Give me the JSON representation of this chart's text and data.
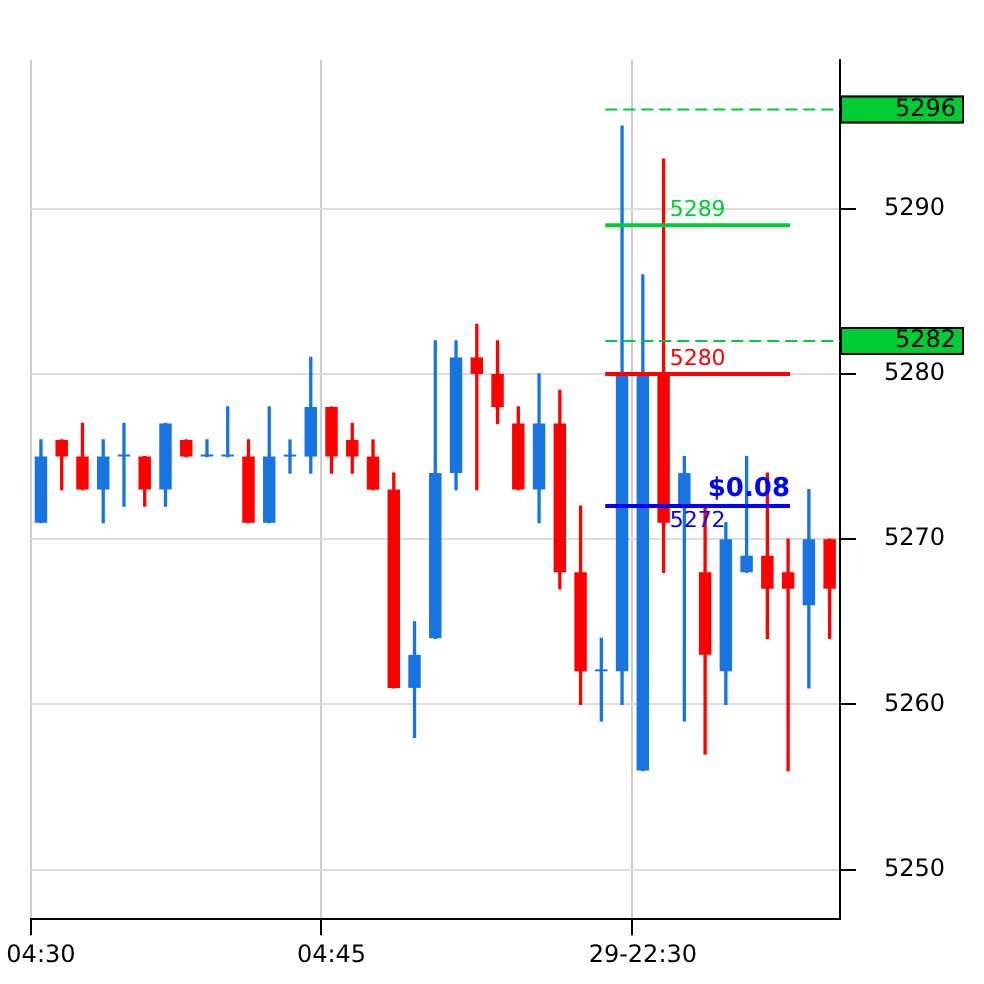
{
  "chart_data": {
    "type": "candlestick",
    "categories": [
      "04:30",
      null,
      null,
      null,
      null,
      null,
      null,
      null,
      null,
      null,
      null,
      null,
      null,
      null,
      "04:45",
      null,
      null,
      null,
      null,
      null,
      null,
      null,
      null,
      null,
      null,
      null,
      null,
      null,
      null,
      "29-22:30",
      null,
      null,
      null,
      null,
      null,
      null,
      null,
      null,
      null
    ],
    "ohlc": [
      [
        5271,
        5276,
        5271,
        5275
      ],
      [
        5276,
        5276,
        5273,
        5275
      ],
      [
        5275,
        5277,
        5273,
        5273
      ],
      [
        5273,
        5276,
        5271,
        5275
      ],
      [
        5275,
        5277,
        5272,
        5275
      ],
      [
        5275,
        5275,
        5272,
        5273
      ],
      [
        5273,
        5277,
        5272,
        5277
      ],
      [
        5276,
        5276,
        5275,
        5275
      ],
      [
        5275,
        5276,
        5275,
        5275
      ],
      [
        5275,
        5278,
        5275,
        5275
      ],
      [
        5275,
        5276,
        5271,
        5271
      ],
      [
        5271,
        5278,
        5271,
        5275
      ],
      [
        5275,
        5276,
        5274,
        5275
      ],
      [
        5275,
        5281,
        5274,
        5278
      ],
      [
        5278,
        5278,
        5274,
        5275
      ],
      [
        5276,
        5277,
        5274,
        5275
      ],
      [
        5275,
        5276,
        5273,
        5273
      ],
      [
        5273,
        5274,
        5261,
        5261
      ],
      [
        5261,
        5265,
        5258,
        5263
      ],
      [
        5264,
        5282,
        5264,
        5274
      ],
      [
        5274,
        5282,
        5273,
        5281
      ],
      [
        5281,
        5283,
        5273,
        5280
      ],
      [
        5280,
        5282,
        5277,
        5278
      ],
      [
        5277,
        5278,
        5273,
        5273
      ],
      [
        5273,
        5280,
        5271,
        5277
      ],
      [
        5277,
        5279,
        5267,
        5268
      ],
      [
        5268,
        5272,
        5260,
        5262
      ],
      [
        5262,
        5264,
        5259,
        5262
      ],
      [
        5262,
        5295,
        5260,
        5280
      ],
      [
        5256,
        5286,
        5256,
        5280
      ],
      [
        5280,
        5293,
        5268,
        5271
      ],
      [
        5272,
        5275,
        5259,
        5274
      ],
      [
        5268,
        5272,
        5257,
        5263
      ],
      [
        5262,
        5271,
        5260,
        5270
      ],
      [
        5268,
        5275,
        5268,
        5269
      ],
      [
        5269,
        5274,
        5264,
        5267
      ],
      [
        5268,
        5270,
        5256,
        5267
      ],
      [
        5266,
        5273,
        5261,
        5270
      ],
      [
        5270,
        5270,
        5264,
        5267
      ]
    ],
    "colors": [
      "#1874e0",
      "#ff0000",
      "#ff0000",
      "#1874e0",
      "#1874e0",
      "#ff0000",
      "#1874e0",
      "#ff0000",
      "#1874e0",
      "#1874e0",
      "#ff0000",
      "#1874e0",
      "#1874e0",
      "#1874e0",
      "#ff0000",
      "#ff0000",
      "#ff0000",
      "#ff0000",
      "#1874e0",
      "#1874e0",
      "#1874e0",
      "#ff0000",
      "#ff0000",
      "#ff0000",
      "#1874e0",
      "#ff0000",
      "#ff0000",
      "#1874e0",
      "#1874e0",
      "#1874e0",
      "#ff0000",
      "#1874e0",
      "#ff0000",
      "#1874e0",
      "#1874e0",
      "#ff0000",
      "#ff0000",
      "#1874e0",
      "#ff0000"
    ],
    "ylim": [
      5247,
      5299
    ],
    "yticks": [
      5250,
      5260,
      5270,
      5280,
      5290
    ],
    "grid": true,
    "ref_lines": [
      {
        "axis": "y",
        "value": 5296,
        "label": "5296",
        "color": "#00cc33",
        "line_style": "dashed"
      },
      {
        "axis": "y",
        "value": 5289,
        "label": "5289",
        "color": "#00cc33",
        "line_style": "solid"
      },
      {
        "axis": "y",
        "value": 5282,
        "label": "5282",
        "color": "#00cc33",
        "line_style": "dashed"
      },
      {
        "axis": "y",
        "value": 5280,
        "label": "5280",
        "color": "#ff0000",
        "line_style": "solid"
      },
      {
        "axis": "y",
        "value": 5272,
        "label": "5272",
        "color": "#0000ff",
        "line_style": "solid"
      }
    ],
    "annotations": [
      {
        "text": "$0.08",
        "y": 5272
      }
    ]
  }
}
